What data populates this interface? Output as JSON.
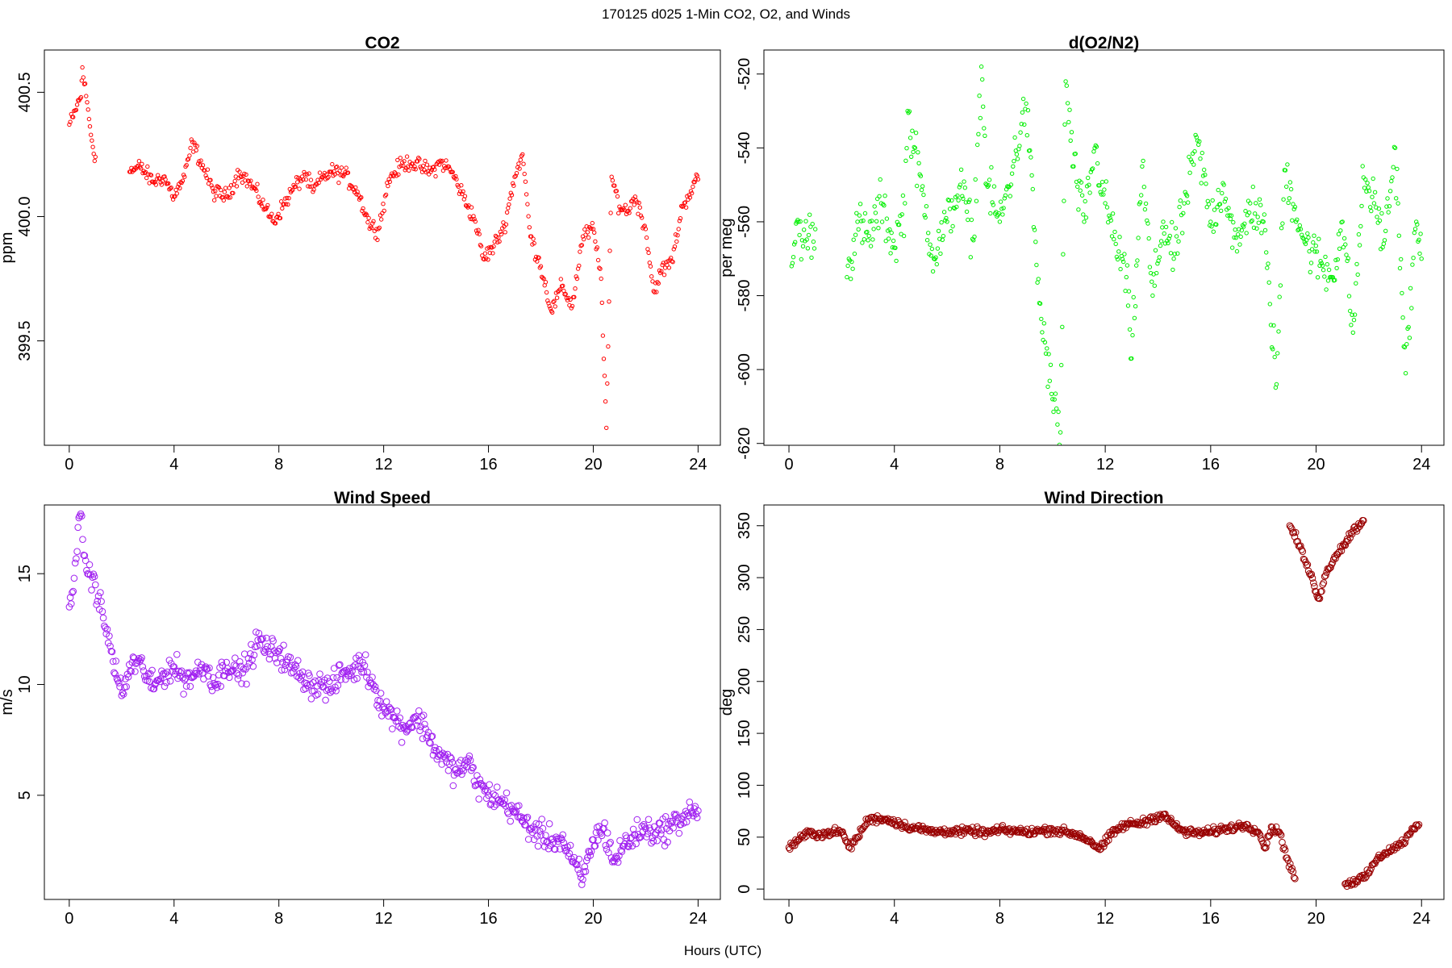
{
  "figure": {
    "suptitle": "170125   d025   1-Min CO2, O2, and Winds",
    "xlabel": "Hours (UTC)"
  },
  "chart_data": [
    {
      "id": "co2",
      "type": "scatter",
      "title": "CO2",
      "xlabel": "",
      "ylabel": "ppm",
      "xlim": [
        -0.95,
        24.85
      ],
      "ylim": [
        399.08,
        400.67
      ],
      "xticks": [
        0,
        4,
        8,
        12,
        16,
        20,
        24
      ],
      "yticks": [
        399.5,
        400.0,
        400.5
      ],
      "ytick_labels": [
        "399.5",
        "400.0",
        "400.5"
      ],
      "color": "#ff0000",
      "marker_radius": 2.2,
      "dense": true,
      "series_points": [
        [
          0.0,
          400.37
        ],
        [
          0.15,
          400.4
        ],
        [
          0.3,
          400.45
        ],
        [
          0.45,
          400.48
        ],
        [
          0.5,
          400.6
        ],
        [
          0.9,
          400.28
        ],
        [
          1.0,
          400.24
        ],
        [
          2.3,
          400.18
        ],
        [
          2.7,
          400.2
        ],
        [
          3.2,
          400.14
        ],
        [
          3.6,
          400.16
        ],
        [
          4.0,
          400.08
        ],
        [
          4.4,
          400.16
        ],
        [
          4.7,
          400.3
        ],
        [
          5.5,
          400.1
        ],
        [
          6.0,
          400.08
        ],
        [
          6.5,
          400.18
        ],
        [
          7.0,
          400.12
        ],
        [
          7.5,
          400.03
        ],
        [
          7.8,
          399.98
        ],
        [
          8.2,
          400.05
        ],
        [
          8.6,
          400.12
        ],
        [
          9.0,
          400.17
        ],
        [
          9.3,
          400.1
        ],
        [
          9.6,
          400.15
        ],
        [
          10.0,
          400.18
        ],
        [
          10.5,
          400.17
        ],
        [
          11.0,
          400.1
        ],
        [
          11.5,
          399.96
        ],
        [
          11.8,
          399.95
        ],
        [
          12.2,
          400.15
        ],
        [
          12.6,
          400.2
        ],
        [
          13.0,
          400.22
        ],
        [
          13.4,
          400.2
        ],
        [
          13.8,
          400.18
        ],
        [
          14.2,
          400.22
        ],
        [
          14.6,
          400.18
        ],
        [
          15.5,
          399.98
        ],
        [
          15.8,
          399.83
        ],
        [
          16.2,
          399.88
        ],
        [
          16.6,
          399.96
        ],
        [
          17.0,
          400.16
        ],
        [
          17.3,
          400.25
        ],
        [
          17.6,
          399.92
        ],
        [
          18.0,
          399.8
        ],
        [
          18.4,
          399.62
        ],
        [
          18.8,
          399.72
        ],
        [
          19.2,
          399.64
        ],
        [
          19.6,
          399.92
        ],
        [
          20.0,
          399.95
        ],
        [
          20.3,
          399.75
        ],
        [
          20.5,
          399.15
        ],
        [
          20.7,
          400.16
        ],
        [
          21.0,
          400.04
        ],
        [
          21.3,
          400.02
        ],
        [
          21.6,
          400.08
        ],
        [
          22.0,
          399.95
        ],
        [
          22.3,
          399.7
        ],
        [
          22.6,
          399.78
        ],
        [
          23.0,
          399.82
        ],
        [
          23.4,
          400.04
        ],
        [
          23.8,
          400.12
        ],
        [
          24.0,
          400.15
        ]
      ]
    },
    {
      "id": "o2",
      "type": "scatter",
      "title": "d(O2/N2)",
      "xlabel": "",
      "ylabel": "per meg",
      "xlim": [
        -0.95,
        24.85
      ],
      "ylim": [
        -620.5,
        -513.5
      ],
      "xticks": [
        0,
        4,
        8,
        12,
        16,
        20,
        24
      ],
      "yticks": [
        -620,
        -600,
        -580,
        -560,
        -540,
        -520
      ],
      "ytick_labels": [
        "-620",
        "-600",
        "-580",
        "-560",
        "-540",
        "-520"
      ],
      "color": "#00ee00",
      "marker_radius": 2.2,
      "dense": true,
      "series_points": [
        [
          0.1,
          -572
        ],
        [
          0.3,
          -560
        ],
        [
          0.5,
          -565
        ],
        [
          1.0,
          -562
        ],
        [
          2.2,
          -575
        ],
        [
          2.6,
          -560
        ],
        [
          3.0,
          -565
        ],
        [
          3.5,
          -555
        ],
        [
          4.0,
          -567
        ],
        [
          4.4,
          -555
        ],
        [
          4.5,
          -530
        ],
        [
          5.5,
          -570
        ],
        [
          6.0,
          -560
        ],
        [
          6.5,
          -550
        ],
        [
          7.0,
          -565
        ],
        [
          7.3,
          -518
        ],
        [
          7.5,
          -550
        ],
        [
          8.0,
          -560
        ],
        [
          8.5,
          -545
        ],
        [
          9.0,
          -528
        ],
        [
          9.5,
          -582
        ],
        [
          10.0,
          -608
        ],
        [
          10.3,
          -617
        ],
        [
          10.5,
          -522
        ],
        [
          10.8,
          -545
        ],
        [
          11.2,
          -560
        ],
        [
          11.6,
          -540
        ],
        [
          12.0,
          -555
        ],
        [
          12.4,
          -566
        ],
        [
          12.8,
          -575
        ],
        [
          13.0,
          -597
        ],
        [
          13.4,
          -545
        ],
        [
          13.8,
          -580
        ],
        [
          14.2,
          -560
        ],
        [
          14.6,
          -570
        ],
        [
          15.5,
          -538
        ],
        [
          16.0,
          -560
        ],
        [
          16.5,
          -550
        ],
        [
          17.0,
          -568
        ],
        [
          17.5,
          -555
        ],
        [
          18.0,
          -560
        ],
        [
          18.5,
          -604
        ],
        [
          18.8,
          -546
        ],
        [
          19.2,
          -556
        ],
        [
          19.6,
          -566
        ],
        [
          20.6,
          -575
        ],
        [
          21.0,
          -560
        ],
        [
          21.4,
          -590
        ],
        [
          21.8,
          -548
        ],
        [
          22.2,
          -555
        ],
        [
          22.6,
          -565
        ],
        [
          23.0,
          -540
        ],
        [
          23.4,
          -601
        ],
        [
          23.8,
          -560
        ],
        [
          24.0,
          -570
        ]
      ]
    },
    {
      "id": "ws",
      "type": "scatter",
      "title": "Wind Speed",
      "xlabel": "",
      "ylabel": "m/s",
      "xlim": [
        -0.95,
        24.85
      ],
      "ylim": [
        0.3,
        18.1
      ],
      "xticks": [
        0,
        4,
        8,
        12,
        16,
        20,
        24
      ],
      "yticks": [
        5,
        10,
        15
      ],
      "ytick_labels": [
        "5",
        "10",
        "15"
      ],
      "color": "#a020f0",
      "marker_radius": 3.8,
      "dense": true,
      "series_points": [
        [
          0.0,
          13.5
        ],
        [
          0.3,
          16.0
        ],
        [
          0.4,
          17.6
        ],
        [
          0.7,
          15.0
        ],
        [
          1.0,
          14.5
        ],
        [
          1.3,
          13.0
        ],
        [
          1.6,
          11.5
        ],
        [
          2.0,
          9.5
        ],
        [
          2.4,
          11.0
        ],
        [
          2.8,
          10.8
        ],
        [
          3.2,
          9.8
        ],
        [
          3.6,
          10.5
        ],
        [
          4.0,
          10.8
        ],
        [
          4.4,
          10.2
        ],
        [
          4.8,
          10.5
        ],
        [
          5.2,
          10.8
        ],
        [
          5.6,
          10.0
        ],
        [
          6.0,
          11.0
        ],
        [
          6.4,
          10.5
        ],
        [
          6.8,
          10.8
        ],
        [
          7.2,
          12.0
        ],
        [
          7.6,
          11.5
        ],
        [
          8.0,
          11.5
        ],
        [
          8.4,
          10.8
        ],
        [
          8.8,
          10.5
        ],
        [
          9.2,
          10.0
        ],
        [
          9.6,
          10.0
        ],
        [
          10.0,
          9.8
        ],
        [
          10.4,
          10.5
        ],
        [
          10.8,
          10.6
        ],
        [
          11.2,
          11.0
        ],
        [
          11.6,
          10.0
        ],
        [
          12.0,
          9.0
        ],
        [
          12.4,
          8.5
        ],
        [
          12.8,
          8.0
        ],
        [
          13.2,
          8.5
        ],
        [
          13.6,
          8.0
        ],
        [
          14.0,
          7.0
        ],
        [
          14.4,
          6.5
        ],
        [
          14.8,
          6.0
        ],
        [
          15.2,
          6.5
        ],
        [
          15.6,
          5.5
        ],
        [
          16.0,
          5.0
        ],
        [
          16.4,
          4.8
        ],
        [
          16.8,
          4.5
        ],
        [
          17.2,
          4.0
        ],
        [
          17.6,
          3.5
        ],
        [
          18.0,
          3.2
        ],
        [
          18.4,
          3.0
        ],
        [
          18.8,
          3.0
        ],
        [
          19.2,
          2.0
        ],
        [
          19.6,
          1.2
        ],
        [
          20.0,
          3.0
        ],
        [
          20.4,
          3.5
        ],
        [
          20.8,
          2.0
        ],
        [
          21.2,
          2.8
        ],
        [
          21.6,
          3.2
        ],
        [
          22.0,
          3.5
        ],
        [
          22.4,
          3.3
        ],
        [
          22.8,
          3.5
        ],
        [
          23.2,
          3.8
        ],
        [
          23.6,
          4.2
        ],
        [
          24.0,
          4.3
        ]
      ]
    },
    {
      "id": "wd",
      "type": "scatter",
      "title": "Wind Direction",
      "xlabel": "",
      "ylabel": "deg",
      "xlim": [
        -0.95,
        24.85
      ],
      "ylim": [
        -10,
        370
      ],
      "xticks": [
        0,
        4,
        8,
        12,
        16,
        20,
        24
      ],
      "yticks": [
        0,
        50,
        100,
        150,
        200,
        250,
        300,
        350
      ],
      "ytick_labels": [
        "0",
        "50",
        "100",
        "150",
        "200",
        "250",
        "300",
        "350"
      ],
      "color": "#990000",
      "marker_radius": 3.8,
      "dense": true,
      "series_points": [
        [
          0.0,
          40
        ],
        [
          0.4,
          48
        ],
        [
          0.8,
          55
        ],
        [
          1.2,
          52
        ],
        [
          1.6,
          55
        ],
        [
          2.0,
          55
        ],
        [
          2.3,
          40
        ],
        [
          2.6,
          50
        ],
        [
          3.0,
          67
        ],
        [
          3.5,
          68
        ],
        [
          4.0,
          65
        ],
        [
          4.5,
          60
        ],
        [
          5.0,
          58
        ],
        [
          5.5,
          55
        ],
        [
          6.0,
          56
        ],
        [
          6.5,
          55
        ],
        [
          7.0,
          56
        ],
        [
          7.5,
          54
        ],
        [
          8.0,
          57
        ],
        [
          8.5,
          56
        ],
        [
          9.0,
          55
        ],
        [
          9.5,
          56
        ],
        [
          10.0,
          57
        ],
        [
          10.5,
          55
        ],
        [
          11.0,
          52
        ],
        [
          11.5,
          45
        ],
        [
          11.8,
          38
        ],
        [
          12.2,
          52
        ],
        [
          12.6,
          60
        ],
        [
          13.0,
          63
        ],
        [
          13.4,
          64
        ],
        [
          13.8,
          68
        ],
        [
          14.2,
          72
        ],
        [
          14.6,
          62
        ],
        [
          15.0,
          55
        ],
        [
          15.5,
          54
        ],
        [
          16.0,
          55
        ],
        [
          16.5,
          58
        ],
        [
          17.0,
          60
        ],
        [
          17.4,
          62
        ],
        [
          17.8,
          55
        ],
        [
          18.1,
          40
        ],
        [
          18.3,
          60
        ],
        [
          18.6,
          55
        ],
        [
          18.9,
          30
        ],
        [
          19.2,
          10
        ],
        [
          19.0,
          350
        ],
        [
          19.3,
          335
        ],
        [
          19.6,
          315
        ],
        [
          19.9,
          295
        ],
        [
          20.1,
          280
        ],
        [
          20.4,
          305
        ],
        [
          20.7,
          320
        ],
        [
          21.0,
          330
        ],
        [
          21.4,
          345
        ],
        [
          21.8,
          355
        ],
        [
          21.1,
          5
        ],
        [
          21.5,
          8
        ],
        [
          21.9,
          12
        ],
        [
          22.2,
          25
        ],
        [
          22.6,
          35
        ],
        [
          23.0,
          40
        ],
        [
          23.3,
          45
        ],
        [
          23.6,
          55
        ],
        [
          23.9,
          62
        ]
      ]
    }
  ]
}
